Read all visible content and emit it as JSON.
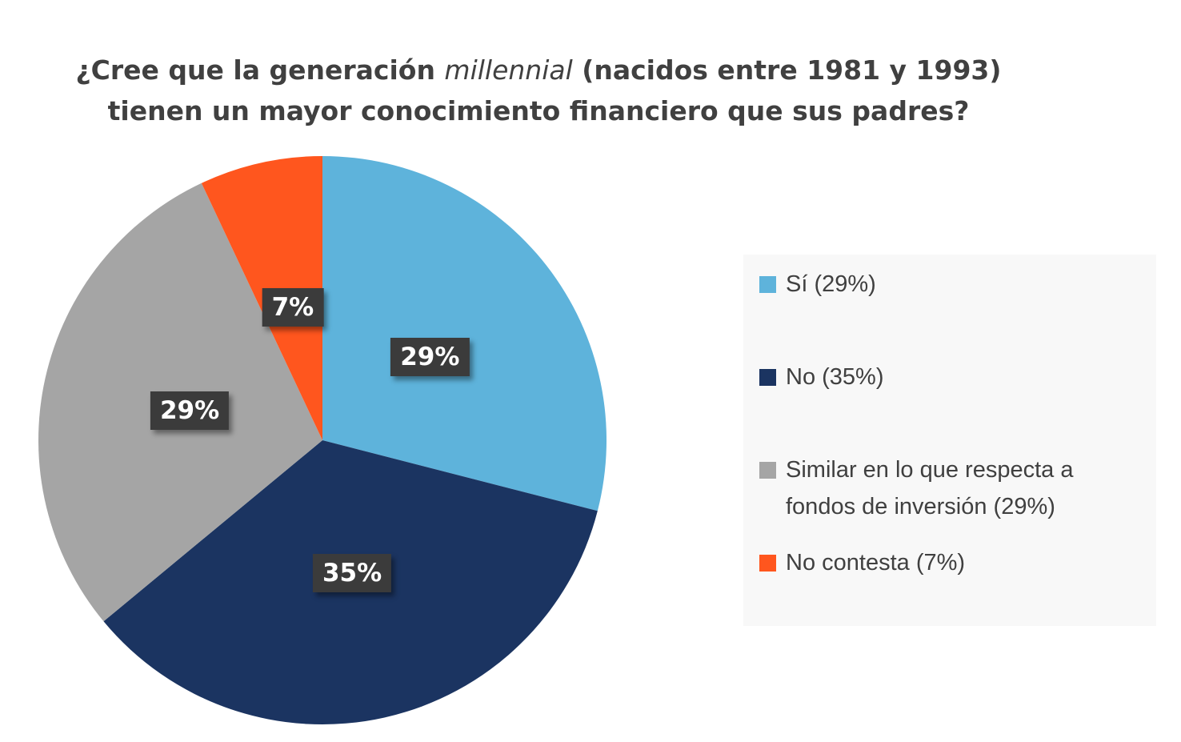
{
  "title": {
    "line1_before": "¿Cree que la generación ",
    "line1_italic": "millennial",
    "line1_after": " (nacidos entre 1981 y 1993)",
    "line2": "tienen un mayor conocimiento financiero que sus padres?"
  },
  "chart_data": {
    "type": "pie",
    "title": "¿Cree que la generación millennial (nacidos entre 1981 y 1993) tienen un mayor conocimiento financiero que sus padres?",
    "start_angle_deg": 0,
    "direction": "clockwise",
    "legend_position": "right",
    "slices": [
      {
        "name": "Sí (29%)",
        "value": 29,
        "label": "29%",
        "color": "#5eb3db"
      },
      {
        "name": "No (35%)",
        "value": 35,
        "label": "35%",
        "color": "#1b3461"
      },
      {
        "name": "Similar en lo que respecta a fondos de inversión (29%)",
        "value": 29,
        "label": "29%",
        "color": "#a5a5a5"
      },
      {
        "name": "No contesta (7%)",
        "value": 7,
        "label": "7%",
        "color": "#ff561e"
      }
    ]
  }
}
